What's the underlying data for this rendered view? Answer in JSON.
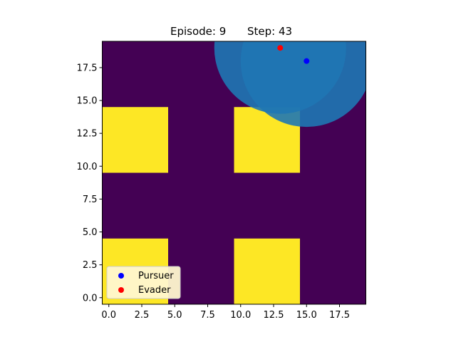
{
  "title": {
    "episode_label": "Episode: 9",
    "step_label": "Step: 43"
  },
  "colors": {
    "free_cell": "#440154",
    "obstacle_cell": "#fde725",
    "sensing_region": "#1f77b4",
    "pursuer": "#0000ff",
    "evader": "#ff0000",
    "legend_background": "#fff7cf"
  },
  "chart_data": {
    "type": "heatmap",
    "grid": {
      "cols": 20,
      "rows": 20,
      "xlim": [
        -0.5,
        19.5
      ],
      "ylim": [
        -0.5,
        19.5
      ],
      "free_value": 0,
      "obstacle_value": 1
    },
    "obstacles": [
      {
        "x0": 0,
        "x1": 4,
        "y0": 10,
        "y1": 14
      },
      {
        "x0": 10,
        "x1": 14,
        "y0": 10,
        "y1": 14
      },
      {
        "x0": 0,
        "x1": 4,
        "y0": 0,
        "y1": 4
      },
      {
        "x0": 10,
        "x1": 14,
        "y0": 0,
        "y1": 4
      }
    ],
    "xticks": [
      0.0,
      2.5,
      5.0,
      7.5,
      10.0,
      12.5,
      15.0,
      17.5
    ],
    "xtick_labels": [
      "0.0",
      "2.5",
      "5.0",
      "7.5",
      "10.0",
      "12.5",
      "15.0",
      "17.5"
    ],
    "yticks": [
      0.0,
      2.5,
      5.0,
      7.5,
      10.0,
      12.5,
      15.0,
      17.5
    ],
    "ytick_labels": [
      "0.0",
      "2.5",
      "5.0",
      "7.5",
      "10.0",
      "12.5",
      "15.0",
      "17.5"
    ],
    "agents": [
      {
        "name": "Pursuer",
        "x": 15,
        "y": 18
      },
      {
        "name": "Evader",
        "x": 13,
        "y": 19
      }
    ],
    "sensing_regions": [
      {
        "agent": "Evader",
        "cx": 13,
        "cy": 19,
        "radius": 5,
        "opacity": 0.9
      },
      {
        "agent": "Pursuer",
        "cx": 15,
        "cy": 18,
        "radius": 5,
        "opacity": 0.9
      }
    ],
    "legend": {
      "location": "lower-left",
      "entries": [
        "Pursuer",
        "Evader"
      ]
    }
  }
}
